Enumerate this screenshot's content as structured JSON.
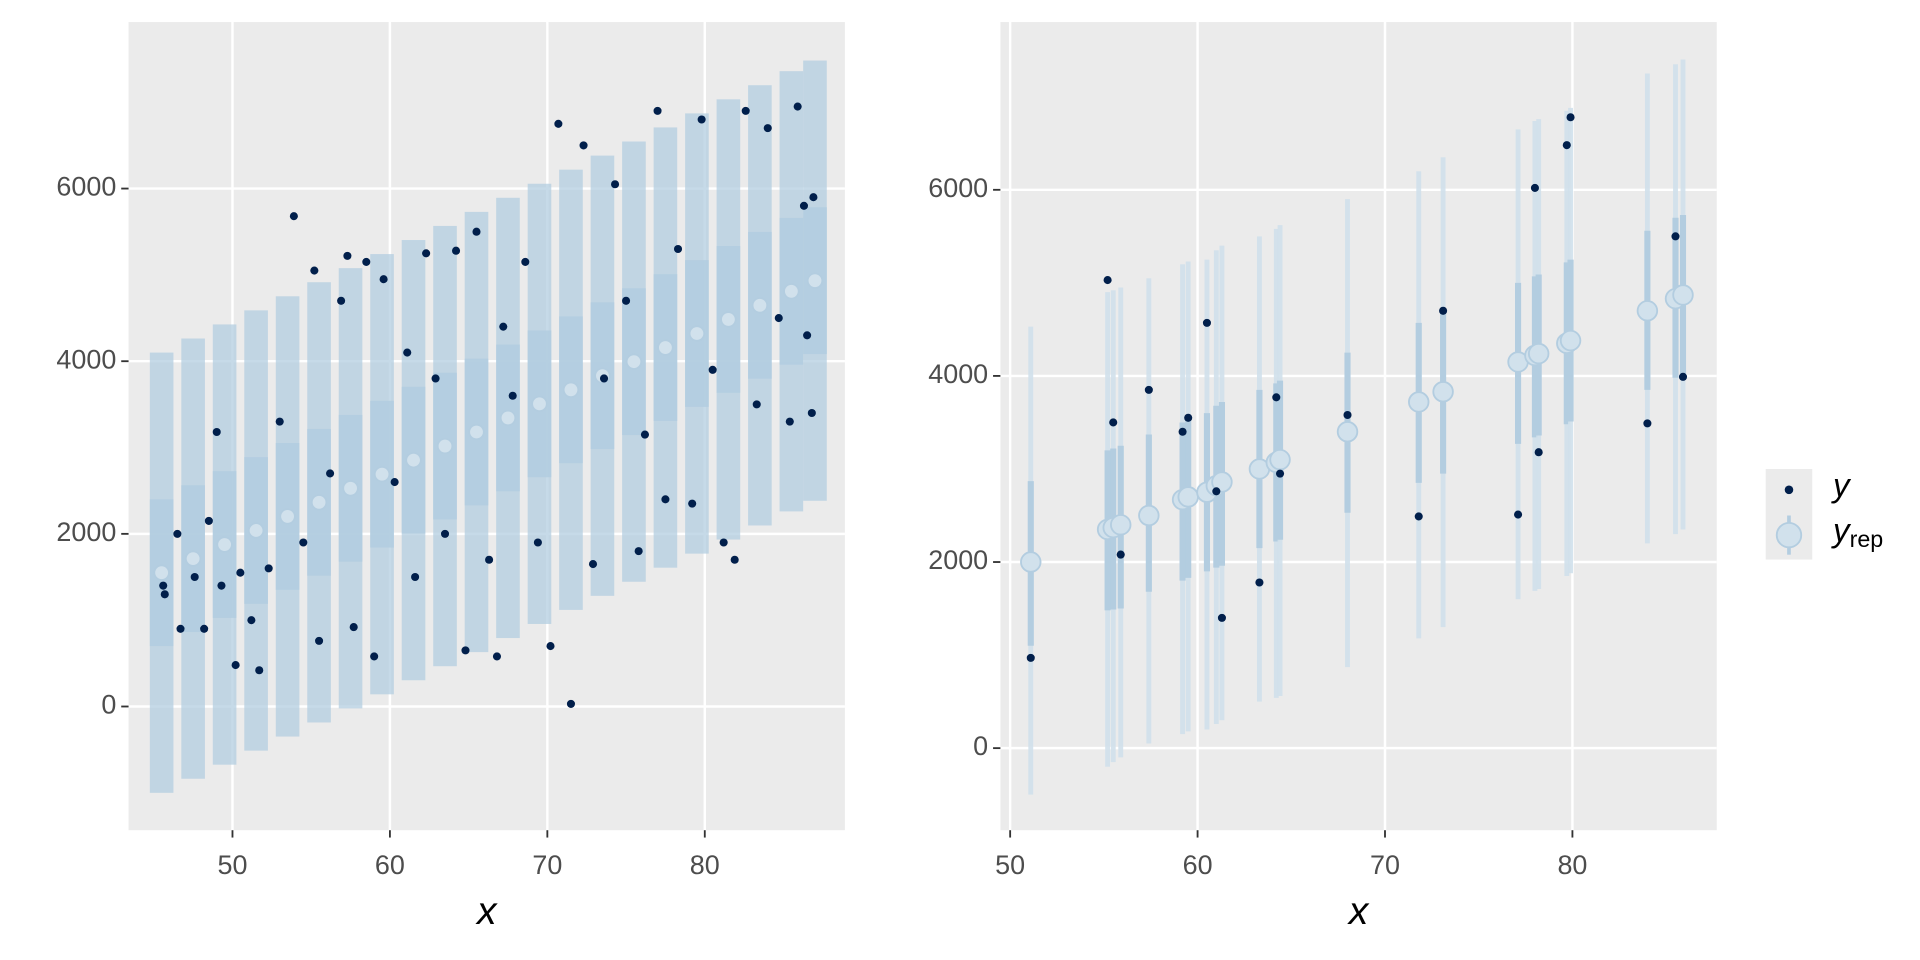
{
  "chart_data": [
    {
      "type": "ribbon",
      "xlabel": "x",
      "xlim": [
        43.4,
        88.9
      ],
      "ylim": [
        -1433,
        7929
      ],
      "xticks": [
        50,
        60,
        70,
        80
      ],
      "yticks": [
        0,
        2000,
        4000,
        6000
      ],
      "grid": true,
      "interval_color": "#b3cde0",
      "median_color": "#d1e1ec",
      "point_color": "#011f4b",
      "x": [
        45.5,
        47.5,
        49.5,
        51.5,
        53.5,
        55.5,
        57.5,
        59.5,
        61.5,
        63.5,
        65.5,
        67.5,
        69.5,
        71.5,
        73.5,
        75.5,
        77.5,
        79.5,
        81.5,
        83.5,
        85.5,
        87
      ],
      "median": [
        1550,
        1713,
        1876,
        2039,
        2202,
        2365,
        2528,
        2691,
        2854,
        3017,
        3180,
        3343,
        3506,
        3669,
        3832,
        3995,
        4158,
        4321,
        4484,
        4647,
        4810,
        4933
      ],
      "outer_low": [
        -1000,
        -837,
        -674,
        -511,
        -348,
        -185,
        -22,
        141,
        304,
        467,
        630,
        793,
        956,
        1119,
        1282,
        1445,
        1608,
        1771,
        1934,
        2097,
        2260,
        2383
      ],
      "outer_high": [
        4100,
        4263,
        4426,
        4589,
        4752,
        4915,
        5078,
        5241,
        5404,
        5567,
        5730,
        5893,
        6056,
        6219,
        6382,
        6545,
        6708,
        6871,
        7034,
        7197,
        7360,
        7483
      ],
      "inner_low": [
        700,
        863,
        1026,
        1189,
        1352,
        1515,
        1678,
        1841,
        2004,
        2167,
        2330,
        2493,
        2656,
        2819,
        2982,
        3145,
        3308,
        3471,
        3634,
        3797,
        3960,
        4083
      ],
      "inner_high": [
        2400,
        2563,
        2726,
        2889,
        3052,
        3215,
        3378,
        3541,
        3704,
        3867,
        4030,
        4193,
        4356,
        4519,
        4682,
        4845,
        5008,
        5171,
        5334,
        5497,
        5660,
        5783
      ],
      "observed": {
        "x": [
          45.6,
          45.7,
          46.5,
          46.7,
          47.6,
          48.2,
          48.5,
          49.0,
          49.3,
          50.2,
          50.5,
          51.2,
          51.7,
          52.3,
          53.0,
          53.9,
          54.5,
          55.2,
          55.5,
          56.2,
          56.9,
          57.3,
          57.7,
          58.5,
          59.0,
          59.6,
          60.3,
          61.1,
          61.6,
          62.3,
          62.9,
          63.5,
          64.2,
          64.8,
          65.5,
          66.3,
          66.8,
          67.2,
          67.8,
          68.6,
          69.4,
          70.2,
          70.7,
          71.5,
          72.3,
          72.9,
          73.6,
          74.3,
          75.0,
          75.8,
          76.2,
          77.0,
          77.5,
          78.3,
          79.2,
          79.8,
          80.5,
          81.2,
          81.9,
          82.6,
          83.3,
          84.0,
          84.7,
          85.4,
          85.9,
          86.3,
          86.8,
          86.9,
          86.5
        ],
        "y": [
          1400,
          1300,
          2000,
          900,
          1500,
          900,
          2150,
          3180,
          1400,
          480,
          1550,
          1000,
          420,
          1600,
          3300,
          5680,
          1900,
          5050,
          760,
          2700,
          4700,
          5220,
          920,
          5150,
          580,
          4950,
          2600,
          4100,
          1500,
          5250,
          3800,
          2000,
          5280,
          650,
          5500,
          1700,
          580,
          4400,
          3600,
          5150,
          1900,
          700,
          6750,
          30,
          6500,
          1650,
          3800,
          6050,
          4700,
          1800,
          3150,
          6900,
          2400,
          5300,
          2350,
          6800,
          3900,
          1900,
          1700,
          6900,
          3500,
          6700,
          4500,
          3300,
          6950,
          5800,
          3400,
          5900,
          4300
        ]
      }
    },
    {
      "type": "interval",
      "xlabel": "x",
      "xlim": [
        49.48,
        87.7
      ],
      "ylim": [
        -882,
        7803
      ],
      "xticks": [
        50,
        60,
        70,
        80
      ],
      "yticks": [
        0,
        2000,
        4000,
        6000
      ],
      "grid": true,
      "interval_color": "#b3cde0",
      "median_color": "#d1e1ec",
      "point_color": "#011f4b",
      "x": [
        51.1,
        55.2,
        55.5,
        55.9,
        57.4,
        59.2,
        59.5,
        60.5,
        61.0,
        61.3,
        63.3,
        64.2,
        64.4,
        68.0,
        71.8,
        73.1,
        77.1,
        78.0,
        78.2,
        79.7,
        79.9,
        84.0,
        85.5,
        85.9
      ],
      "median": [
        2000,
        2350,
        2370,
        2400,
        2500,
        2670,
        2700,
        2750,
        2820,
        2860,
        3000,
        3070,
        3100,
        3400,
        3720,
        3830,
        4150,
        4220,
        4240,
        4350,
        4380,
        4700,
        4830,
        4870
      ],
      "inner_low": [
        1100,
        1480,
        1490,
        1500,
        1680,
        1800,
        1830,
        1900,
        1940,
        1960,
        2150,
        2220,
        2240,
        2530,
        2850,
        2950,
        3270,
        3340,
        3360,
        3480,
        3510,
        3850,
        3980,
        4000
      ],
      "inner_high": [
        2870,
        3200,
        3220,
        3250,
        3370,
        3500,
        3530,
        3600,
        3680,
        3720,
        3850,
        3920,
        3950,
        4250,
        4570,
        4700,
        5000,
        5070,
        5090,
        5220,
        5250,
        5560,
        5700,
        5730
      ],
      "outer_low": [
        -500,
        -200,
        -150,
        -100,
        50,
        150,
        180,
        200,
        260,
        300,
        500,
        540,
        560,
        870,
        1180,
        1300,
        1600,
        1690,
        1710,
        1850,
        1880,
        2200,
        2300,
        2350
      ],
      "outer_high": [
        4530,
        4900,
        4920,
        4950,
        5050,
        5200,
        5230,
        5250,
        5350,
        5400,
        5500,
        5580,
        5620,
        5900,
        6200,
        6350,
        6650,
        6740,
        6760,
        6850,
        6880,
        7250,
        7350,
        7400
      ],
      "observed": {
        "x": [
          51.1,
          55.2,
          55.5,
          55.9,
          57.4,
          59.2,
          59.5,
          60.5,
          61.0,
          61.3,
          63.3,
          64.2,
          64.4,
          68.0,
          71.8,
          73.1,
          77.1,
          78.0,
          78.2,
          79.7,
          79.9,
          84.0,
          85.5,
          85.9
        ],
        "y": [
          970,
          5030,
          3500,
          2080,
          3850,
          3400,
          3550,
          4570,
          2760,
          1400,
          1780,
          3770,
          2950,
          3580,
          2490,
          4700,
          2510,
          6020,
          3180,
          6480,
          6780,
          3490,
          5500,
          3990
        ]
      },
      "legend": [
        {
          "name": "y",
          "color": "#011f4b"
        },
        {
          "name": "y",
          "subscript": "rep",
          "color": "#d1e1ec"
        }
      ]
    }
  ]
}
